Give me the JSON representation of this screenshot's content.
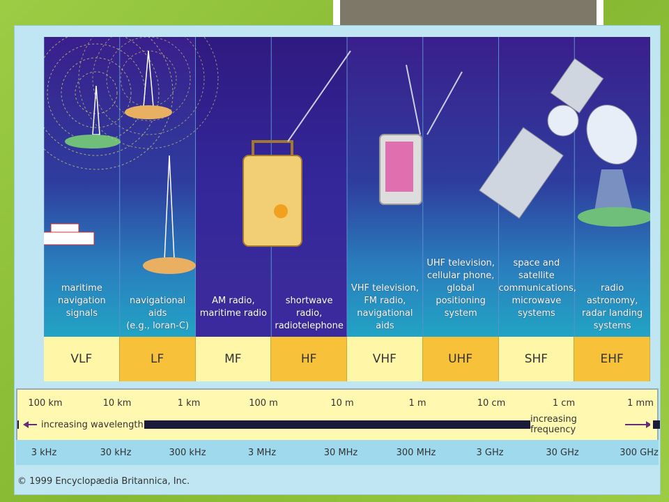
{
  "bands": [
    {
      "abbr": "VLF",
      "use": "maritime\nnavigation\nsignals",
      "abbr_bg": "#fff6a8"
    },
    {
      "abbr": "LF",
      "use": "navigational aids\n(e.g., loran-C)",
      "abbr_bg": "#f7c23a"
    },
    {
      "abbr": "MF",
      "use": "AM radio,\nmaritime radio",
      "abbr_bg": "#fff6a8"
    },
    {
      "abbr": "HF",
      "use": "shortwave radio,\nradiotelephone",
      "abbr_bg": "#f7c23a"
    },
    {
      "abbr": "VHF",
      "use": "VHF television,\nFM radio,\nnavigational aids",
      "abbr_bg": "#fff6a8"
    },
    {
      "abbr": "UHF",
      "use": "UHF television,\ncellular phone,\nglobal\npositioning\nsystem",
      "abbr_bg": "#f7c23a"
    },
    {
      "abbr": "SHF",
      "use": "space and\nsatellite\ncommunications,\nmicrowave\nsystems",
      "abbr_bg": "#fff6a8"
    },
    {
      "abbr": "EHF",
      "use": "radio astronomy,\nradar landing\nsystems",
      "abbr_bg": "#f7c23a"
    }
  ],
  "wavelengths": [
    "100 km",
    "10 km",
    "1 km",
    "100 m",
    "10 m",
    "1 m",
    "10 cm",
    "1 cm",
    "1 mm"
  ],
  "frequencies": [
    "3 kHz",
    "30 kHz",
    "300 kHz",
    "3 MHz",
    "30 MHz",
    "300 MHz",
    "3 GHz",
    "30 GHz",
    "300 GHz"
  ],
  "wavelength_arrow": "increasing wavelength",
  "frequency_arrow": "increasing frequency",
  "copyright": "© 1999 Encyclopædia Britannica, Inc.",
  "colors": {
    "band_top": "#3a1f8c",
    "band_bottom": "#1fa6c8",
    "arrow": "#6a2a7a"
  }
}
